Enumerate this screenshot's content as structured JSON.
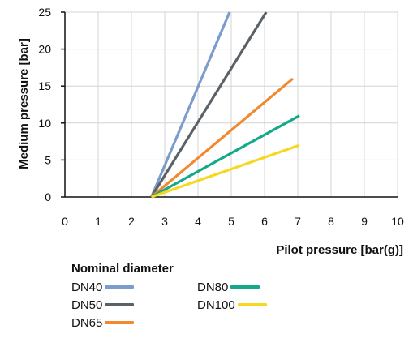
{
  "chart_data": {
    "type": "line",
    "xlabel": "Pilot pressure [bar(g)]",
    "ylabel": "Medium pressure [bar]",
    "xlim": [
      0,
      10
    ],
    "ylim": [
      0,
      25
    ],
    "xticks": [
      0,
      1,
      2,
      3,
      4,
      5,
      6,
      7,
      8,
      9,
      10
    ],
    "yticks": [
      0,
      5,
      10,
      15,
      20,
      25
    ],
    "grid": true,
    "legend_title": "Nominal diameter",
    "legend_placement": "bottom",
    "series": [
      {
        "name": "DN40",
        "color": "#7b9ccc",
        "x": [
          2.6,
          4.95
        ],
        "y": [
          0,
          25
        ]
      },
      {
        "name": "DN50",
        "color": "#5a6268",
        "x": [
          2.6,
          6.05
        ],
        "y": [
          0,
          25
        ]
      },
      {
        "name": "DN65",
        "color": "#f2892e",
        "x": [
          2.6,
          6.85
        ],
        "y": [
          0,
          16
        ]
      },
      {
        "name": "DN80",
        "color": "#14a98b",
        "x": [
          2.6,
          7.05
        ],
        "y": [
          0,
          11
        ]
      },
      {
        "name": "DN100",
        "color": "#f7d820",
        "x": [
          2.6,
          7.05
        ],
        "y": [
          0,
          7
        ]
      }
    ]
  }
}
